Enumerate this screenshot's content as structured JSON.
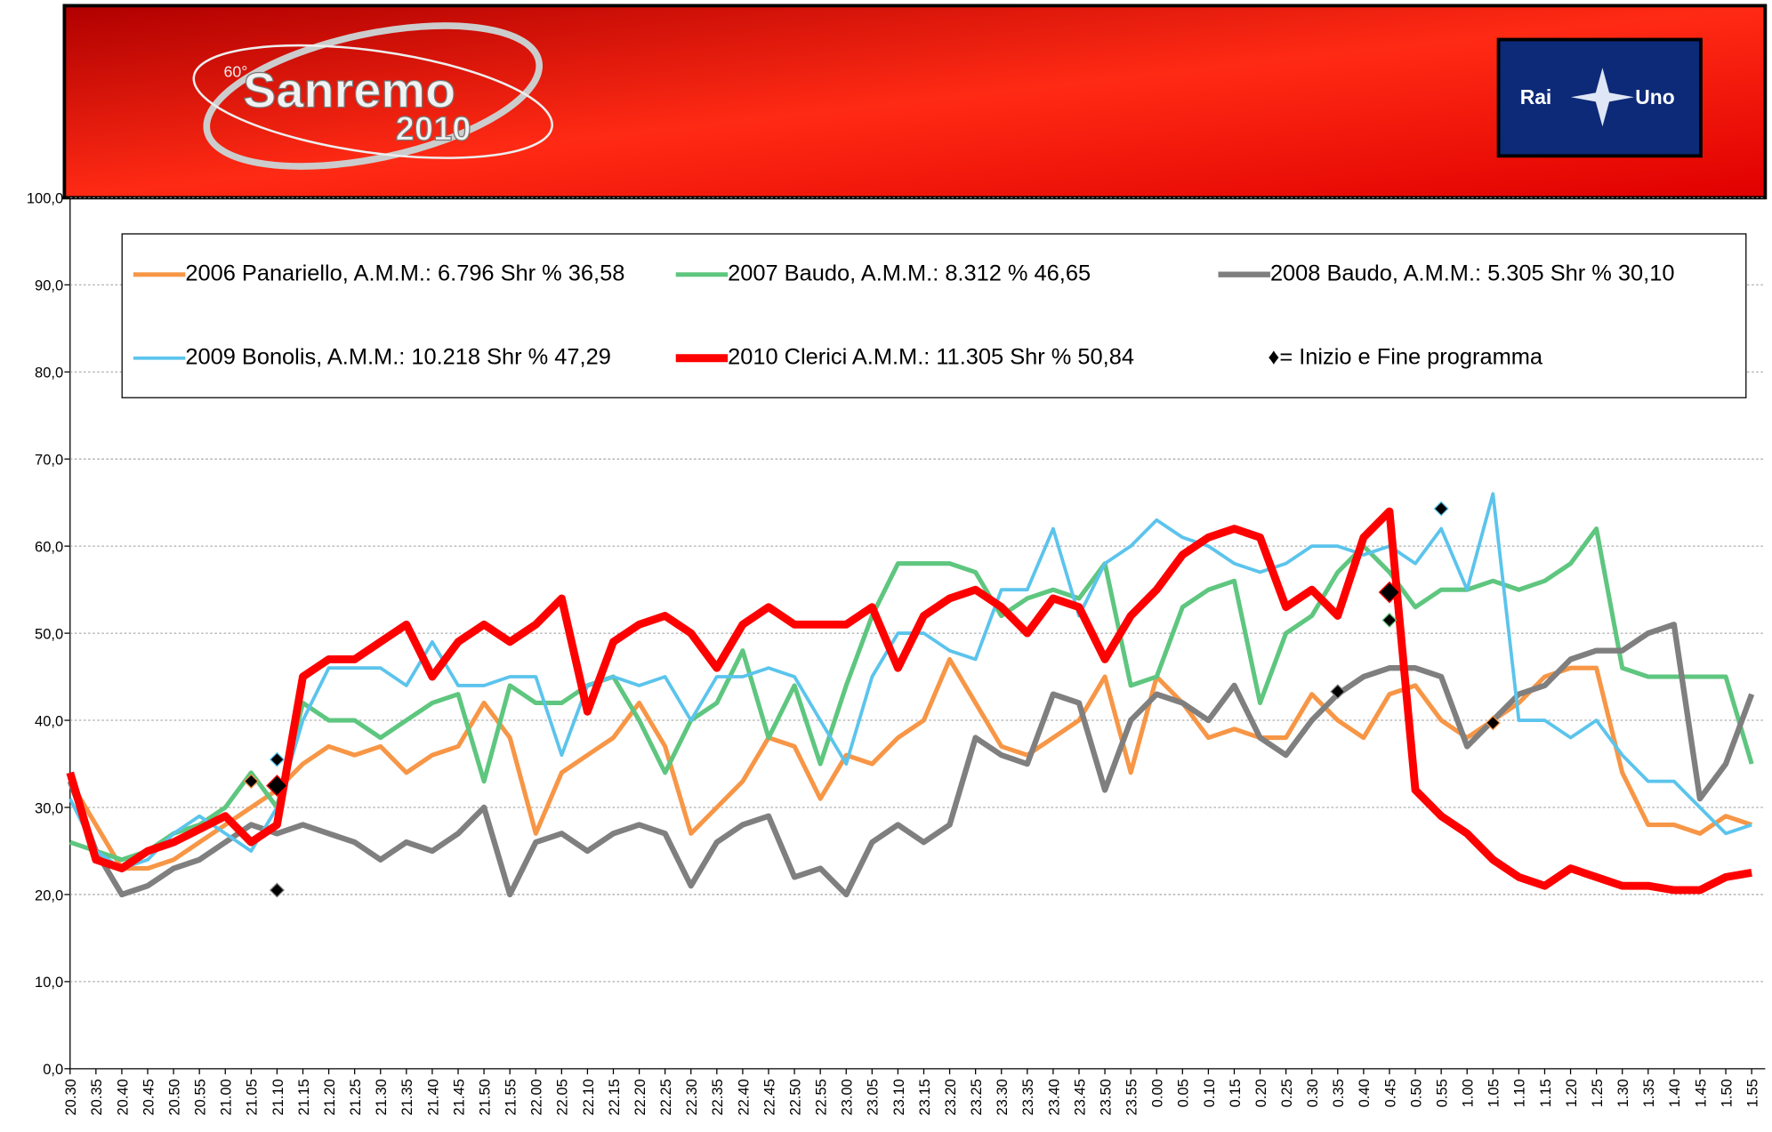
{
  "header": {
    "edition": "60°",
    "logo": "Sanremo",
    "year": "2010",
    "channel_left": "Rai",
    "channel_right": "Uno"
  },
  "chart_data": {
    "type": "line",
    "categories": [
      "20.30",
      "20.35",
      "20.40",
      "20.45",
      "20.50",
      "20.55",
      "21.00",
      "21.05",
      "21.10",
      "21.15",
      "21.20",
      "21.25",
      "21.30",
      "21.35",
      "21.40",
      "21.45",
      "21.50",
      "21.55",
      "22.00",
      "22.05",
      "22.10",
      "22.15",
      "22.20",
      "22.25",
      "22.30",
      "22.35",
      "22.40",
      "22.45",
      "22.50",
      "22.55",
      "23.00",
      "23.05",
      "23.10",
      "23.15",
      "23.20",
      "23.25",
      "23.30",
      "23.35",
      "23.40",
      "23.45",
      "23.50",
      "23.55",
      "0.00",
      "0.05",
      "0.10",
      "0.15",
      "0.20",
      "0.25",
      "0.30",
      "0.35",
      "0.40",
      "0.45",
      "0.50",
      "0.55",
      "1.00",
      "1.05",
      "1.10",
      "1.15",
      "1.20",
      "1.25",
      "1.30",
      "1.35",
      "1.40",
      "1.45",
      "1.50",
      "1.55"
    ],
    "ylim": [
      0,
      100
    ],
    "yticks": [
      {
        "value": 0,
        "label": "0,0"
      },
      {
        "value": 10,
        "label": "10,0"
      },
      {
        "value": 20,
        "label": "20,0"
      },
      {
        "value": 30,
        "label": "30,0"
      },
      {
        "value": 40,
        "label": "40,0"
      },
      {
        "value": 50,
        "label": "50,0"
      },
      {
        "value": 60,
        "label": "60,0"
      },
      {
        "value": 70,
        "label": "70,0"
      },
      {
        "value": 80,
        "label": "80,0"
      },
      {
        "value": 90,
        "label": "90,0"
      },
      {
        "value": 100,
        "label": "100,0"
      }
    ],
    "grid": true,
    "marker_legend": "♦= Inizio e Fine programma",
    "series": [
      {
        "name": "2006 Panariello, A.M.M.: 6.796 Shr % 36,58",
        "color": "#f79646",
        "values": [
          33,
          28,
          23,
          23,
          24,
          26,
          28,
          30,
          32,
          35,
          37,
          36,
          37,
          34,
          36,
          37,
          42,
          38,
          27,
          34,
          36,
          38,
          42,
          37,
          27,
          30,
          33,
          38,
          37,
          31,
          36,
          35,
          38,
          40,
          47,
          42,
          37,
          36,
          38,
          40,
          45,
          34,
          45,
          42,
          38,
          39,
          38,
          38,
          43,
          40,
          38,
          43,
          44,
          40,
          38,
          40,
          42,
          45,
          46,
          46,
          34,
          28,
          28,
          27,
          29,
          28
        ],
        "markers": [
          {
            "x": "21.05",
            "y": 33
          },
          {
            "x": "1.05",
            "y": 39.7
          }
        ]
      },
      {
        "name": "2007 Baudo, A.M.M.: 8.312 % 46,65",
        "color": "#5ec67f",
        "values": [
          26,
          25,
          24,
          25,
          27,
          28,
          30,
          34,
          30,
          42,
          40,
          40,
          38,
          40,
          42,
          43,
          33,
          44,
          42,
          42,
          44,
          45,
          40,
          34,
          40,
          42,
          48,
          38,
          44,
          35,
          44,
          52,
          58,
          58,
          58,
          57,
          52,
          54,
          55,
          54,
          58,
          44,
          45,
          53,
          55,
          56,
          42,
          50,
          52,
          57,
          60,
          57,
          53,
          55,
          55,
          56,
          55,
          56,
          58,
          62,
          46,
          45,
          45,
          45,
          45,
          35
        ],
        "markers": [
          {
            "x": "0.45",
            "y": 51.5
          }
        ]
      },
      {
        "name": "2008 Baudo, A.M.M.: 5.305 Shr % 30,10",
        "color": "#7f7f7f",
        "values": [
          33,
          25,
          20,
          21,
          23,
          24,
          26,
          28,
          27,
          28,
          27,
          26,
          24,
          26,
          25,
          27,
          30,
          20,
          26,
          27,
          25,
          27,
          28,
          27,
          21,
          26,
          28,
          29,
          22,
          23,
          20,
          26,
          28,
          26,
          28,
          38,
          36,
          35,
          43,
          42,
          32,
          40,
          43,
          42,
          40,
          44,
          38,
          36,
          40,
          43,
          45,
          46,
          46,
          45,
          37,
          40,
          43,
          44,
          47,
          48,
          48,
          50,
          51,
          31,
          35,
          43
        ],
        "markers": [
          {
            "x": "21.10",
            "y": 20.5
          },
          {
            "x": "0.35",
            "y": 43.3
          }
        ]
      },
      {
        "name": "2009 Bonolis, A.M.M.: 10.218 Shr % 47,29",
        "color": "#5bc4ec",
        "values": [
          31,
          25,
          23,
          24,
          27,
          29,
          27,
          25,
          30,
          40,
          46,
          46,
          46,
          44,
          49,
          44,
          44,
          45,
          45,
          36,
          44,
          45,
          44,
          45,
          40,
          45,
          45,
          46,
          45,
          40,
          35,
          45,
          50,
          50,
          48,
          47,
          55,
          55,
          62,
          52,
          58,
          60,
          63,
          61,
          60,
          58,
          57,
          58,
          60,
          60,
          59,
          60,
          58,
          62,
          55,
          66,
          40,
          40,
          38,
          40,
          36,
          33,
          33,
          30,
          27,
          28
        ],
        "markers": [
          {
            "x": "21.10",
            "y": 35.5
          },
          {
            "x": "0.55",
            "y": 64.3
          }
        ]
      },
      {
        "name": "2010 Clerici A.M.M.: 11.305 Shr % 50,84",
        "color": "#ff0000",
        "values": [
          34,
          24,
          23,
          25,
          26,
          27.5,
          29,
          26,
          28,
          45,
          47,
          47,
          49,
          51,
          45,
          49,
          51,
          49,
          51,
          54,
          41,
          49,
          51,
          52,
          50,
          46,
          51,
          53,
          51,
          51,
          51,
          53,
          46,
          52,
          54,
          55,
          53,
          50,
          54,
          53,
          47,
          52,
          55,
          59,
          61,
          62,
          61,
          53,
          55,
          52,
          61,
          64,
          32,
          29,
          27,
          24,
          22,
          21,
          23,
          22,
          21,
          21,
          20.5,
          20.5,
          22,
          22.5
        ],
        "markers": [
          {
            "x": "21.10",
            "y": 32.5
          },
          {
            "x": "0.45",
            "y": 54.7
          }
        ]
      }
    ]
  }
}
